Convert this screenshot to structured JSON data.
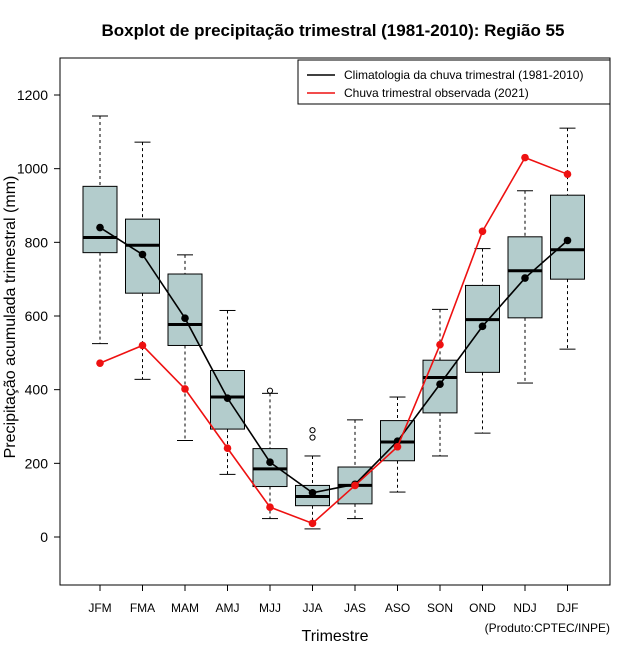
{
  "chart_data": {
    "type": "boxplot",
    "title": "Boxplot de precipitação trimestral (1981-2010): Região 55",
    "xlabel": "Trimestre",
    "ylabel": "Precipitação acumulada trimestral (mm)",
    "credit": "(Produto:CPTEC/INPE)",
    "ylim": [
      -130,
      1300
    ],
    "yticks": [
      0,
      200,
      400,
      600,
      800,
      1000,
      1200
    ],
    "categories": [
      "JFM",
      "FMA",
      "MAM",
      "AMJ",
      "MJJ",
      "JJA",
      "JAS",
      "ASO",
      "SON",
      "OND",
      "NDJ",
      "DJF"
    ],
    "boxes": [
      {
        "min": 525,
        "q1": 772,
        "median": 813,
        "q3": 952,
        "max": 1143,
        "outliers": []
      },
      {
        "min": 428,
        "q1": 662,
        "median": 792,
        "q3": 863,
        "max": 1072,
        "outliers": []
      },
      {
        "min": 262,
        "q1": 520,
        "median": 577,
        "q3": 714,
        "max": 766,
        "outliers": []
      },
      {
        "min": 170,
        "q1": 293,
        "median": 380,
        "q3": 452,
        "max": 615,
        "outliers": []
      },
      {
        "min": 50,
        "q1": 137,
        "median": 185,
        "q3": 240,
        "max": 390,
        "outliers": [
          397
        ]
      },
      {
        "min": 22,
        "q1": 85,
        "median": 110,
        "q3": 140,
        "max": 220,
        "outliers": [
          270,
          290
        ]
      },
      {
        "min": 50,
        "q1": 90,
        "median": 140,
        "q3": 190,
        "max": 318,
        "outliers": []
      },
      {
        "min": 122,
        "q1": 207,
        "median": 258,
        "q3": 316,
        "max": 380,
        "outliers": []
      },
      {
        "min": 220,
        "q1": 337,
        "median": 433,
        "q3": 480,
        "max": 618,
        "outliers": []
      },
      {
        "min": 282,
        "q1": 447,
        "median": 590,
        "q3": 683,
        "max": 783,
        "outliers": []
      },
      {
        "min": 418,
        "q1": 595,
        "median": 723,
        "q3": 815,
        "max": 940,
        "outliers": []
      },
      {
        "min": 510,
        "q1": 700,
        "median": 780,
        "q3": 928,
        "max": 1110,
        "outliers": []
      }
    ],
    "series": [
      {
        "name": "Climatologia da chuva trimestral (1981-2010)",
        "color": "#000000",
        "values": [
          840,
          767,
          594,
          377,
          203,
          120,
          143,
          260,
          415,
          572,
          703,
          805
        ]
      },
      {
        "name": "Chuva trimestral observada (2021)",
        "color": "#ee1111",
        "values": [
          472,
          520,
          402,
          241,
          81,
          37,
          140,
          245,
          522,
          830,
          1030,
          985
        ]
      }
    ],
    "box_color": "#b3cccc",
    "legend_position": "top-right"
  }
}
